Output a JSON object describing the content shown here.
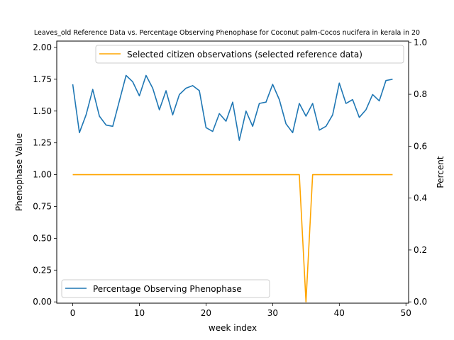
{
  "chart_data": {
    "type": "line",
    "title": "Leaves_old Reference Data vs. Percentage Observing Phenophase for Coconut palm-Cocos nucifera in kerala in 20",
    "xlabel": "week index",
    "ylabel": "Phenophase Value",
    "y2label": "Percent",
    "xlim": [
      -2.4,
      50.4
    ],
    "ylim": [
      -0.01,
      2.05
    ],
    "y2lim": [
      -0.005,
      1.005
    ],
    "xticks": [
      0,
      10,
      20,
      30,
      40,
      50
    ],
    "yticks": [
      "0.00",
      "0.25",
      "0.50",
      "0.75",
      "1.00",
      "1.25",
      "1.50",
      "1.75",
      "2.00"
    ],
    "y2ticks": [
      "0.0",
      "0.2",
      "0.4",
      "0.6",
      "0.8",
      "1.0"
    ],
    "series": [
      {
        "name": "Percentage Observing Phenophase",
        "color": "#1f77b4",
        "axis": "left",
        "x": [
          0,
          1,
          2,
          3,
          4,
          5,
          6,
          7,
          8,
          9,
          10,
          11,
          12,
          13,
          14,
          15,
          16,
          17,
          18,
          19,
          20,
          21,
          22,
          23,
          24,
          25,
          26,
          27,
          28,
          29,
          30,
          31,
          32,
          33,
          34,
          35,
          36,
          37,
          38,
          39,
          40,
          41,
          42,
          43,
          44,
          45,
          46,
          47,
          48
        ],
        "values": [
          1.71,
          1.33,
          1.47,
          1.67,
          1.46,
          1.39,
          1.38,
          1.58,
          1.78,
          1.73,
          1.62,
          1.78,
          1.68,
          1.51,
          1.66,
          1.47,
          1.63,
          1.68,
          1.7,
          1.66,
          1.37,
          1.34,
          1.48,
          1.42,
          1.57,
          1.27,
          1.5,
          1.38,
          1.56,
          1.57,
          1.71,
          1.59,
          1.4,
          1.33,
          1.56,
          1.46,
          1.56,
          1.35,
          1.38,
          1.47,
          1.72,
          1.56,
          1.59,
          1.45,
          1.51,
          1.63,
          1.58,
          1.74,
          1.75
        ]
      },
      {
        "name": "Selected citizen observations (selected reference data)",
        "color": "#ffa500",
        "axis": "left",
        "x": [
          0,
          1,
          2,
          3,
          4,
          5,
          6,
          7,
          8,
          9,
          10,
          11,
          12,
          13,
          14,
          15,
          16,
          17,
          18,
          19,
          20,
          21,
          22,
          23,
          24,
          25,
          26,
          27,
          28,
          29,
          30,
          31,
          32,
          33,
          34,
          35,
          36,
          37,
          38,
          39,
          40,
          41,
          42,
          43,
          44,
          45,
          46,
          47,
          48
        ],
        "values": [
          1,
          1,
          1,
          1,
          1,
          1,
          1,
          1,
          1,
          1,
          1,
          1,
          1,
          1,
          1,
          1,
          1,
          1,
          1,
          1,
          1,
          1,
          1,
          1,
          1,
          1,
          1,
          1,
          1,
          1,
          1,
          1,
          1,
          1,
          1,
          0,
          1,
          1,
          1,
          1,
          1,
          1,
          1,
          1,
          1,
          1,
          1,
          1,
          1
        ]
      }
    ],
    "legends": {
      "top": "Selected citizen observations (selected reference data)",
      "bottom": "Percentage Observing Phenophase"
    }
  }
}
